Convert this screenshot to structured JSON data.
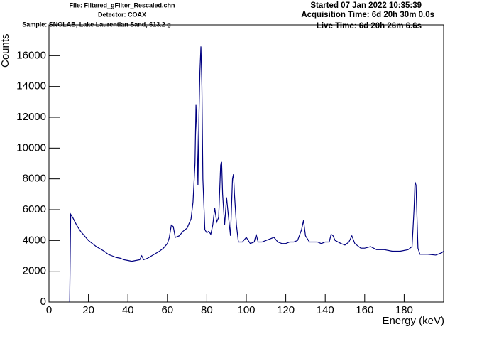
{
  "chart_data": {
    "type": "line",
    "header_left": [
      "File: Filtered_gFilter_Rescaled.chn",
      "Detector: COAX",
      "Sample: SNOLAB, Lake Laurentian Sand, 613.2 g"
    ],
    "header_right": [
      "Started 07 Jan 2022 10:35:39",
      "Acquisition Time: 6d 20h 30m 0.0s",
      "Live Time: 6d 20h 26m 6.6s"
    ],
    "x_label": "Energy (keV)",
    "y_label": "Counts",
    "xlim": [
      0,
      200
    ],
    "ylim": [
      0,
      18000
    ],
    "xticks": [
      0,
      20,
      40,
      60,
      80,
      100,
      120,
      140,
      160,
      180
    ],
    "yticks": [
      0,
      2000,
      4000,
      6000,
      8000,
      10000,
      12000,
      14000,
      16000
    ],
    "series": [
      {
        "color": "#000080",
        "x": [
          10.5,
          11,
          12,
          14,
          16,
          18,
          20,
          22,
          24,
          26,
          28,
          30,
          32,
          34,
          36,
          38,
          40,
          42,
          44,
          46,
          47,
          48,
          50,
          52,
          54,
          56,
          58,
          60,
          61,
          62,
          63,
          64,
          66,
          68,
          70,
          72,
          73,
          74,
          74.5,
          75,
          75.5,
          76,
          76.5,
          77,
          77.5,
          78,
          79,
          80,
          81,
          82,
          83,
          84,
          85,
          86,
          87,
          87.5,
          88,
          89,
          90,
          91,
          92,
          93,
          93.5,
          94,
          95,
          96,
          98,
          100,
          102,
          104,
          105,
          106,
          108,
          110,
          112,
          114,
          116,
          118,
          120,
          122,
          124,
          126,
          128,
          129,
          130,
          132,
          134,
          136,
          138,
          140,
          142,
          143,
          144,
          145,
          148,
          150,
          152,
          153.5,
          155,
          158,
          160,
          163,
          166,
          170,
          174,
          178,
          182,
          184,
          185,
          185.5,
          186,
          187,
          188,
          192,
          196,
          199,
          200
        ],
        "values": [
          0,
          5700,
          5500,
          5000,
          4600,
          4300,
          4000,
          3800,
          3600,
          3450,
          3300,
          3100,
          3000,
          2900,
          2850,
          2750,
          2700,
          2650,
          2700,
          2750,
          3000,
          2750,
          2850,
          3000,
          3150,
          3300,
          3500,
          3800,
          4200,
          5000,
          4900,
          4200,
          4300,
          4600,
          4800,
          5400,
          6500,
          9000,
          12800,
          11000,
          7600,
          12000,
          15000,
          16600,
          14000,
          8000,
          4700,
          4500,
          4600,
          4400,
          5000,
          6100,
          5200,
          5500,
          8900,
          9100,
          7000,
          5000,
          6800,
          5500,
          4300,
          8000,
          8300,
          7000,
          5000,
          3900,
          3900,
          4200,
          3800,
          3900,
          4400,
          3900,
          3900,
          4000,
          4100,
          4200,
          3900,
          3800,
          3800,
          3900,
          3900,
          4000,
          4700,
          5300,
          4300,
          3900,
          3900,
          3900,
          3800,
          3900,
          3900,
          4400,
          4300,
          4000,
          3800,
          3700,
          3900,
          4300,
          3800,
          3500,
          3500,
          3600,
          3400,
          3400,
          3300,
          3300,
          3400,
          3600,
          6000,
          7800,
          7600,
          3500,
          3100,
          3100,
          3050,
          3200,
          3300
        ]
      }
    ]
  }
}
